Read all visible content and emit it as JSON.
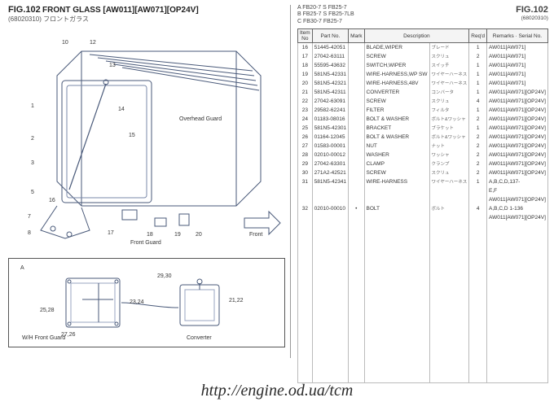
{
  "figure": {
    "number": "FIG.102",
    "title": "FRONT GLASS [AW011][AW071][OP24V]",
    "code": "(68020310)",
    "jp": "フロントガラス"
  },
  "right_header": {
    "lines": [
      "A FB20-7 S FB25-7",
      "B FB25-7 S FB25-7LB",
      "C FB30-7  FB25-7"
    ],
    "fig": "FIG.102",
    "code": "(68020310)"
  },
  "columns": {
    "item": "Item No",
    "partno": "Part No.",
    "mark": "Mark",
    "desc": "Description",
    "req": "Req'd",
    "remarks": "Remarks · Serial No."
  },
  "parts": [
    {
      "item": "16",
      "partno": "51445-42051",
      "mark": "",
      "desc": "BLADE,WIPER",
      "jp": "ブレード",
      "req": "1",
      "remarks": "AW011[AW071]"
    },
    {
      "item": "17",
      "partno": "27042-63111",
      "mark": "",
      "desc": "SCREW",
      "jp": "スクリュ",
      "req": "2",
      "remarks": "AW011[AW071]"
    },
    {
      "item": "18",
      "partno": "55595-43632",
      "mark": "",
      "desc": "SWITCH,WIPER",
      "jp": "スイッチ",
      "req": "1",
      "remarks": "AW011[AW071]"
    },
    {
      "item": "19",
      "partno": "581N5-42331",
      "mark": "",
      "desc": "WIRE-HARNESS,WP SW",
      "jp": "ワイヤーハーネス",
      "req": "1",
      "remarks": "AW011[AW071]"
    },
    {
      "item": "20",
      "partno": "581N5-42321",
      "mark": "",
      "desc": "WIRE-HARNESS,48V",
      "jp": "ワイヤーハーネス",
      "req": "1",
      "remarks": "AW011[AW071]"
    },
    {
      "item": "21",
      "partno": "581N5-42311",
      "mark": "",
      "desc": "CONVERTER",
      "jp": "コンバータ",
      "req": "1",
      "remarks": "AW011[AW071][OP24V]"
    },
    {
      "item": "22",
      "partno": "27042-63091",
      "mark": "",
      "desc": "SCREW",
      "jp": "スクリュ",
      "req": "4",
      "remarks": "AW011[AW071][OP24V]"
    },
    {
      "item": "23",
      "partno": "29582-62241",
      "mark": "",
      "desc": "FILTER",
      "jp": "フィルタ",
      "req": "1",
      "remarks": "AW011[AW071][OP24V]"
    },
    {
      "item": "24",
      "partno": "01183-08016",
      "mark": "",
      "desc": "BOLT & WASHER",
      "jp": "ボルト&ワッシャ",
      "req": "2",
      "remarks": "AW011[AW071][OP24V]"
    },
    {
      "item": "25",
      "partno": "581N5-42301",
      "mark": "",
      "desc": "BRACKET",
      "jp": "ブラケット",
      "req": "1",
      "remarks": "AW011[AW071][OP24V]"
    },
    {
      "item": "26",
      "partno": "01164-12045",
      "mark": "",
      "desc": "BOLT & WASHER",
      "jp": "ボルト&ワッシャ",
      "req": "2",
      "remarks": "AW011[AW071][OP24V]"
    },
    {
      "item": "27",
      "partno": "01583-00001",
      "mark": "",
      "desc": "NUT",
      "jp": "ナット",
      "req": "2",
      "remarks": "AW011[AW071][OP24V]"
    },
    {
      "item": "28",
      "partno": "02010-00012",
      "mark": "",
      "desc": "WASHER",
      "jp": "ワッシャ",
      "req": "2",
      "remarks": "AW011[AW071][OP24V]"
    },
    {
      "item": "29",
      "partno": "27042-63301",
      "mark": "",
      "desc": "CLAMP",
      "jp": "クランプ",
      "req": "2",
      "remarks": "AW011[AW071][OP24V]"
    },
    {
      "item": "30",
      "partno": "271A2-42521",
      "mark": "",
      "desc": "SCREW",
      "jp": "スクリュ",
      "req": "2",
      "remarks": "AW011[AW071][OP24V]"
    },
    {
      "item": "31",
      "partno": "581N5-42341",
      "mark": "",
      "desc": "WIRE-HARNESS",
      "jp": "ワイヤーハーネス",
      "req": "1",
      "remarks": "A,B,C,D,137-"
    },
    {
      "item": "",
      "partno": "",
      "mark": "",
      "desc": "",
      "jp": "",
      "req": "",
      "remarks": "E,F"
    },
    {
      "item": "",
      "partno": "",
      "mark": "",
      "desc": "",
      "jp": "",
      "req": "",
      "remarks": "AW011[AW071][OP24V]"
    },
    {
      "item": "32",
      "partno": "02010-00010",
      "mark": "•",
      "desc": "BOLT",
      "jp": "ボルト",
      "req": "4",
      "remarks": "A,B,C,D 1-136"
    },
    {
      "item": "",
      "partno": "",
      "mark": "",
      "desc": "",
      "jp": "",
      "req": "",
      "remarks": "AW011[AW071][OP24V]"
    }
  ],
  "labels": {
    "overhead_guard": "Overhead Guard",
    "front_guard": "Front Guard",
    "front": "Front",
    "wh_front_guard": "W/H Front Guard",
    "converter": "Converter"
  },
  "callouts_main": [
    "1",
    "2",
    "3",
    "5",
    "7",
    "8",
    "10",
    "12",
    "13",
    "14",
    "15",
    "16",
    "17",
    "18",
    "19",
    "20"
  ],
  "callouts_sub": [
    "21,22",
    "23,24",
    "25,28",
    "27,26",
    "29,30",
    "A"
  ],
  "url": "http://engine.od.ua/tcm",
  "empty_rows": 18,
  "colors": {
    "line": "#4a5a7a",
    "text": "#333333",
    "border": "#666666"
  }
}
